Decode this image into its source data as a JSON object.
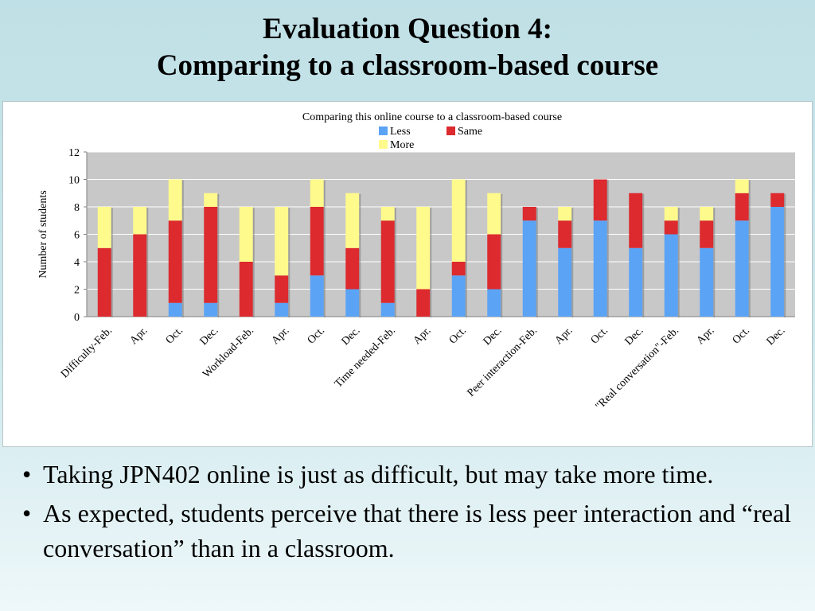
{
  "slide": {
    "title_line1": "Evaluation Question 4:",
    "title_line2": "Comparing to a classroom-based course"
  },
  "bullets": [
    "Taking JPN402 online is just as difficult, but may take more time.",
    "As expected, students perceive that there is less peer interaction and “real conversation” than in a classroom."
  ],
  "bullet_symbol": "•",
  "chart_data": {
    "type": "bar",
    "stacked": true,
    "title": "Comparing this online course to a classroom-based course",
    "ylabel": "Number of students",
    "xlabel": "",
    "ylim": [
      0,
      12
    ],
    "yticks": [
      0,
      2,
      4,
      6,
      8,
      10,
      12
    ],
    "grid": true,
    "legend_position": "top",
    "categories": [
      "Difficulty-Feb.",
      "Apr.",
      "Oct.",
      "Dec.",
      "Workload-Feb.",
      "Apr.",
      "Oct.",
      "Dec.",
      "Time needed-Feb.",
      "Apr.",
      "Oct.",
      "Dec.",
      "Peer interaction-Feb.",
      "Apr.",
      "Oct.",
      "Dec.",
      "\"Real conversation\"-Feb.",
      "Apr.",
      "Oct.",
      "Dec."
    ],
    "series": [
      {
        "name": "Less",
        "color": "#5ba3f5",
        "values": [
          0,
          0,
          1,
          1,
          0,
          1,
          3,
          2,
          1,
          0,
          3,
          2,
          7,
          5,
          7,
          5,
          6,
          5,
          7,
          8
        ]
      },
      {
        "name": "Same",
        "color": "#dc2a2f",
        "values": [
          5,
          6,
          6,
          7,
          4,
          2,
          5,
          3,
          6,
          2,
          1,
          4,
          1,
          2,
          3,
          4,
          1,
          2,
          2,
          1
        ]
      },
      {
        "name": "More",
        "color": "#fffa8c",
        "values": [
          3,
          2,
          3,
          1,
          4,
          5,
          2,
          4,
          1,
          6,
          6,
          3,
          0,
          1,
          0,
          0,
          1,
          1,
          1,
          0
        ]
      }
    ],
    "plot_background": "#c8c8c8"
  }
}
